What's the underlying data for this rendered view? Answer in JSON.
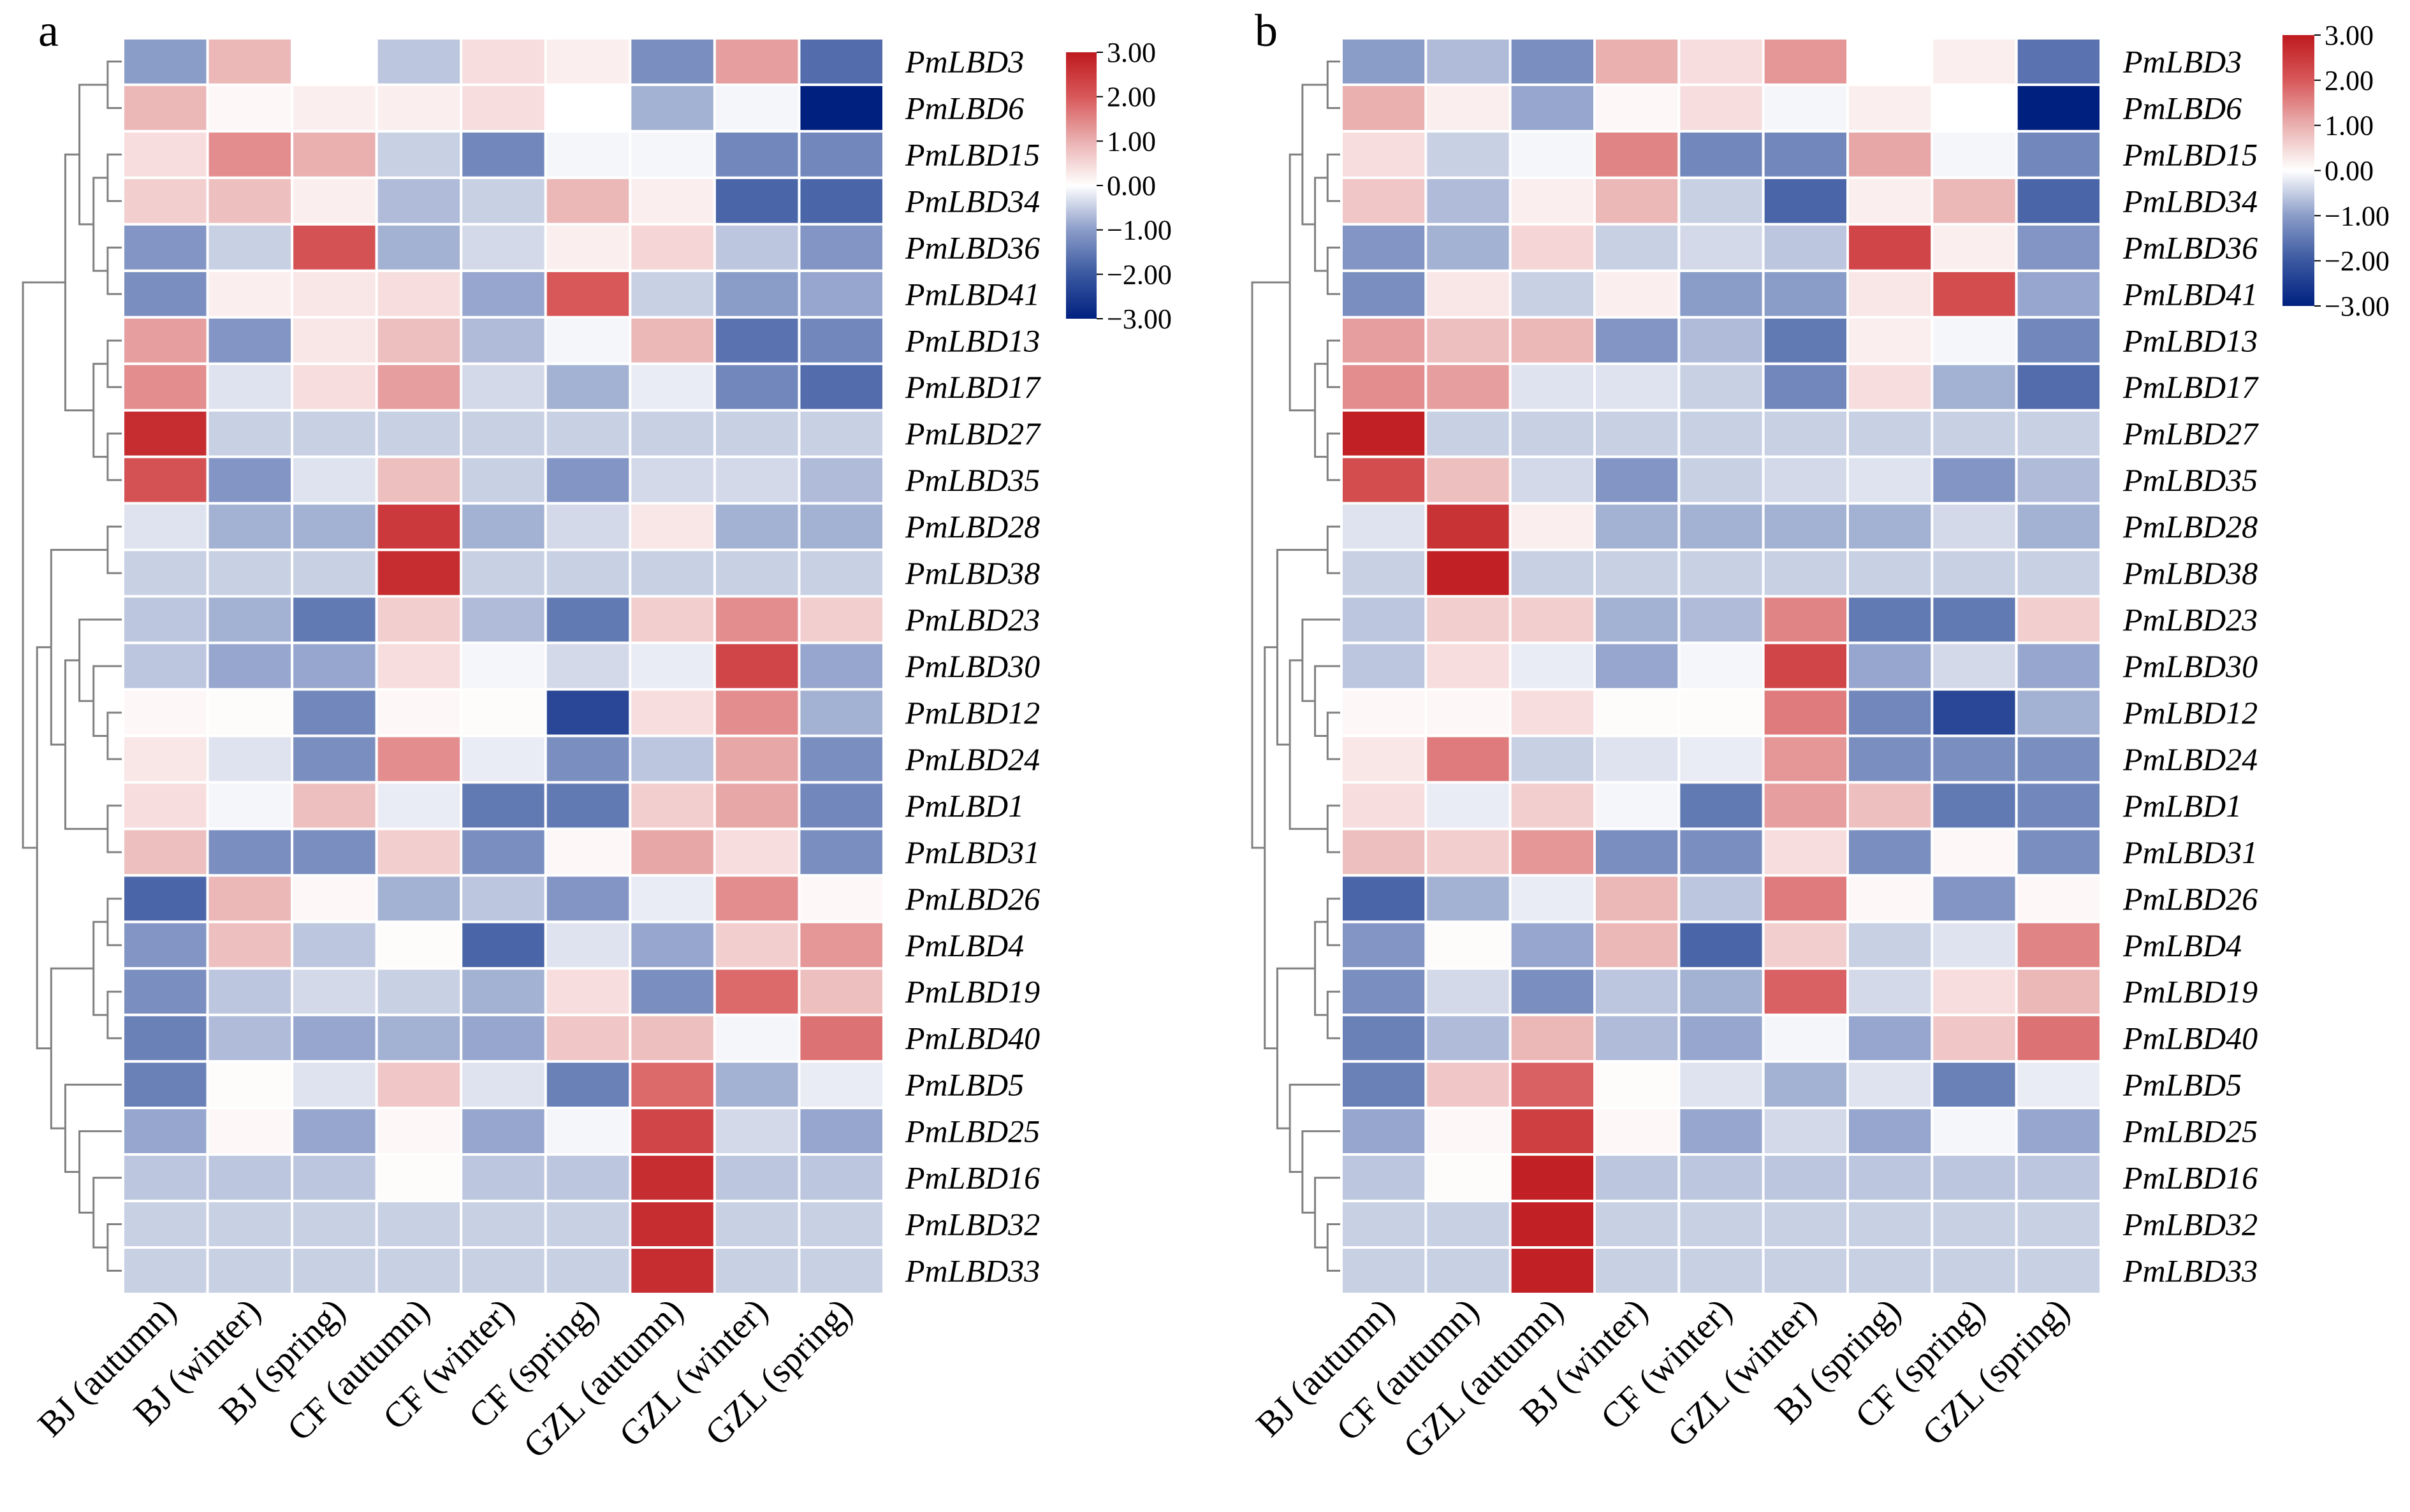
{
  "chart_data": [
    {
      "type": "heatmap",
      "panel_label": "a",
      "columns": [
        "BJ (autumn)",
        "BJ (winter)",
        "BJ (spring)",
        "CF (autumn)",
        "CF (winter)",
        "CF (spring)",
        "GZL (autumn)",
        "GZL (winter)",
        "GZL (spring)"
      ],
      "rows": [
        "PmLBD3",
        "PmLBD6",
        "PmLBD15",
        "PmLBD34",
        "PmLBD36",
        "PmLBD41",
        "PmLBD13",
        "PmLBD17",
        "PmLBD27",
        "PmLBD35",
        "PmLBD28",
        "PmLBD38",
        "PmLBD23",
        "PmLBD30",
        "PmLBD12",
        "PmLBD24",
        "PmLBD1",
        "PmLBD31",
        "PmLBD26",
        "PmLBD4",
        "PmLBD19",
        "PmLBD40",
        "PmLBD5",
        "PmLBD25",
        "PmLBD16",
        "PmLBD32",
        "PmLBD33"
      ],
      "values": [
        [
          -1.0,
          0.9,
          0,
          -0.6,
          0.4,
          0.2,
          -1.2,
          1.2,
          -1.7
        ],
        [
          0.9,
          0.1,
          0.2,
          0.2,
          0.4,
          0,
          -0.8,
          -0.1,
          -3.0
        ],
        [
          0.4,
          1.4,
          1.0,
          -0.5,
          -1.3,
          -0.1,
          -0.1,
          -1.3,
          -1.3
        ],
        [
          0.6,
          0.8,
          0.2,
          -0.7,
          -0.5,
          0.9,
          0.2,
          -1.8,
          -1.8
        ],
        [
          -1.1,
          -0.5,
          2.1,
          -0.8,
          -0.4,
          0.2,
          0.5,
          -0.6,
          -1.1
        ],
        [
          -1.2,
          0.2,
          0.3,
          0.4,
          -0.9,
          2.0,
          -0.5,
          -1.0,
          -0.9
        ],
        [
          1.2,
          -1.1,
          0.3,
          0.8,
          -0.7,
          -0.1,
          0.9,
          -1.6,
          -1.3
        ],
        [
          1.4,
          -0.3,
          0.4,
          1.2,
          -0.4,
          -0.8,
          -0.2,
          -1.3,
          -1.7
        ],
        [
          2.7,
          -0.5,
          -0.5,
          -0.5,
          -0.5,
          -0.5,
          -0.5,
          -0.5,
          -0.5
        ],
        [
          2.1,
          -1.1,
          -0.3,
          0.8,
          -0.5,
          -1.1,
          -0.4,
          -0.4,
          -0.7
        ],
        [
          -0.3,
          -0.8,
          -0.8,
          2.5,
          -0.8,
          -0.4,
          0.3,
          -0.8,
          -0.8
        ],
        [
          -0.5,
          -0.5,
          -0.5,
          2.7,
          -0.5,
          -0.5,
          -0.5,
          -0.5,
          -0.5
        ],
        [
          -0.6,
          -0.8,
          -1.5,
          0.6,
          -0.7,
          -1.5,
          0.6,
          1.4,
          0.6
        ],
        [
          -0.6,
          -0.9,
          -0.9,
          0.4,
          -0.1,
          -0.4,
          -0.2,
          2.3,
          -0.9
        ],
        [
          0.1,
          0.05,
          -1.3,
          0.1,
          0.05,
          -2.3,
          0.4,
          1.4,
          -0.8
        ],
        [
          0.3,
          -0.3,
          -1.2,
          1.4,
          -0.2,
          -1.2,
          -0.6,
          1.1,
          -1.2
        ],
        [
          0.4,
          -0.1,
          0.8,
          -0.2,
          -1.5,
          -1.5,
          0.6,
          1.1,
          -1.3
        ],
        [
          0.8,
          -1.2,
          -1.2,
          0.6,
          -1.2,
          0.1,
          1.1,
          0.4,
          -1.2
        ],
        [
          -1.8,
          0.9,
          0.1,
          -0.8,
          -0.6,
          -1.1,
          -0.2,
          1.4,
          0.1
        ],
        [
          -1.1,
          0.8,
          -0.6,
          0.05,
          -1.8,
          -0.3,
          -0.9,
          0.6,
          1.3
        ],
        [
          -1.2,
          -0.6,
          -0.4,
          -0.5,
          -0.8,
          0.4,
          -1.2,
          1.8,
          0.8
        ],
        [
          -1.4,
          -0.7,
          -0.9,
          -0.8,
          -0.9,
          0.7,
          0.8,
          -0.1,
          1.7
        ],
        [
          -1.4,
          0.05,
          -0.3,
          0.7,
          -0.3,
          -1.4,
          1.8,
          -0.8,
          -0.2
        ],
        [
          -0.9,
          0.1,
          -0.9,
          0.1,
          -0.9,
          -0.1,
          2.3,
          -0.4,
          -0.9
        ],
        [
          -0.6,
          -0.6,
          -0.6,
          0.05,
          -0.6,
          -0.6,
          2.7,
          -0.6,
          -0.6
        ],
        [
          -0.5,
          -0.5,
          -0.5,
          -0.5,
          -0.5,
          -0.5,
          2.7,
          -0.5,
          -0.5
        ],
        [
          -0.5,
          -0.5,
          -0.5,
          -0.5,
          -0.5,
          -0.5,
          2.7,
          -0.5,
          -0.5
        ]
      ],
      "colorbar": {
        "range": [
          -3,
          3
        ],
        "ticks": [
          "3.00",
          "2.00",
          "1.00",
          "0.00",
          "−1.00",
          "−2.00",
          "−3.00"
        ]
      },
      "dendrogram": "rows"
    },
    {
      "type": "heatmap",
      "panel_label": "b",
      "columns": [
        "BJ (autumn)",
        "CF (autumn)",
        "GZL (autumn)",
        "BJ (winter)",
        "CF (winter)",
        "GZL (winter)",
        "BJ (spring)",
        "CF (spring)",
        "GZL (spring)"
      ],
      "rows": [
        "PmLBD3",
        "PmLBD6",
        "PmLBD15",
        "PmLBD34",
        "PmLBD36",
        "PmLBD41",
        "PmLBD13",
        "PmLBD17",
        "PmLBD27",
        "PmLBD35",
        "PmLBD28",
        "PmLBD38",
        "PmLBD23",
        "PmLBD30",
        "PmLBD12",
        "PmLBD24",
        "PmLBD1",
        "PmLBD31",
        "PmLBD26",
        "PmLBD4",
        "PmLBD19",
        "PmLBD40",
        "PmLBD5",
        "PmLBD25",
        "PmLBD16",
        "PmLBD32",
        "PmLBD33"
      ],
      "values": [
        [
          -1.0,
          -0.7,
          -1.2,
          1.0,
          0.4,
          1.3,
          0,
          0.2,
          -1.6
        ],
        [
          1.0,
          0.2,
          -0.9,
          0.1,
          0.4,
          -0.1,
          0.2,
          0,
          -3.0
        ],
        [
          0.4,
          -0.5,
          -0.1,
          1.5,
          -1.3,
          -1.3,
          1.1,
          -0.1,
          -1.3
        ],
        [
          0.7,
          -0.7,
          0.2,
          0.9,
          -0.5,
          -1.8,
          0.2,
          0.9,
          -1.8
        ],
        [
          -1.1,
          -0.8,
          0.5,
          -0.5,
          -0.4,
          -0.6,
          2.3,
          0.2,
          -1.1
        ],
        [
          -1.2,
          0.3,
          -0.5,
          0.2,
          -1.0,
          -1.0,
          0.3,
          2.2,
          -0.9
        ],
        [
          1.2,
          0.8,
          0.9,
          -1.1,
          -0.7,
          -1.5,
          0.2,
          -0.1,
          -1.3
        ],
        [
          1.4,
          1.2,
          -0.3,
          -0.3,
          -0.5,
          -1.3,
          0.4,
          -0.8,
          -1.7
        ],
        [
          2.9,
          -0.5,
          -0.5,
          -0.5,
          -0.5,
          -0.5,
          -0.5,
          -0.5,
          -0.5
        ],
        [
          2.2,
          0.8,
          -0.4,
          -1.1,
          -0.5,
          -0.4,
          -0.3,
          -1.1,
          -0.7
        ],
        [
          -0.3,
          2.6,
          0.2,
          -0.8,
          -0.8,
          -0.8,
          -0.8,
          -0.4,
          -0.8
        ],
        [
          -0.5,
          2.9,
          -0.5,
          -0.5,
          -0.5,
          -0.5,
          -0.5,
          -0.5,
          -0.5
        ],
        [
          -0.6,
          0.6,
          0.6,
          -0.8,
          -0.7,
          1.5,
          -1.5,
          -1.5,
          0.6
        ],
        [
          -0.6,
          0.4,
          -0.2,
          -0.9,
          -0.1,
          2.3,
          -0.9,
          -0.4,
          -0.9
        ],
        [
          0.1,
          0.1,
          0.4,
          0.05,
          0.05,
          1.6,
          -1.3,
          -2.3,
          -0.8
        ],
        [
          0.3,
          1.6,
          -0.5,
          -0.3,
          -0.2,
          1.3,
          -1.2,
          -1.2,
          -1.2
        ],
        [
          0.4,
          -0.2,
          0.6,
          -0.1,
          -1.5,
          1.2,
          0.8,
          -1.5,
          -1.3
        ],
        [
          0.8,
          0.6,
          1.3,
          -1.2,
          -1.2,
          0.4,
          -1.2,
          0.1,
          -1.2
        ],
        [
          -1.8,
          -0.8,
          -0.2,
          0.9,
          -0.6,
          1.6,
          0.1,
          -1.1,
          0.1
        ],
        [
          -1.1,
          0.05,
          -0.9,
          0.9,
          -1.8,
          0.6,
          -0.5,
          -0.3,
          1.5
        ],
        [
          -1.2,
          -0.4,
          -1.2,
          -0.6,
          -0.8,
          1.9,
          -0.4,
          0.4,
          0.9
        ],
        [
          -1.4,
          -0.7,
          0.9,
          -0.7,
          -0.9,
          -0.1,
          -0.9,
          0.7,
          1.7
        ],
        [
          -1.4,
          0.7,
          1.9,
          0.05,
          -0.3,
          -0.8,
          -0.3,
          -1.4,
          -0.2
        ],
        [
          -0.9,
          0.1,
          2.4,
          0.1,
          -0.9,
          -0.4,
          -0.9,
          -0.1,
          -0.9
        ],
        [
          -0.6,
          0.05,
          2.9,
          -0.6,
          -0.6,
          -0.6,
          -0.6,
          -0.6,
          -0.6
        ],
        [
          -0.5,
          -0.5,
          2.9,
          -0.5,
          -0.5,
          -0.5,
          -0.5,
          -0.5,
          -0.5
        ],
        [
          -0.5,
          -0.5,
          2.9,
          -0.5,
          -0.5,
          -0.5,
          -0.5,
          -0.5,
          -0.5
        ]
      ],
      "colorbar": {
        "range": [
          -3,
          3
        ],
        "ticks": [
          "3.00",
          "2.00",
          "1.00",
          "0.00",
          "−1.00",
          "−2.00",
          "−3.00"
        ]
      },
      "dendrogram": "rows"
    }
  ],
  "colors": {
    "min": "#002080",
    "mid": "#ffffff",
    "max": "#be1a1e",
    "dendrogram": "#808080",
    "grid": "#ffffff"
  }
}
